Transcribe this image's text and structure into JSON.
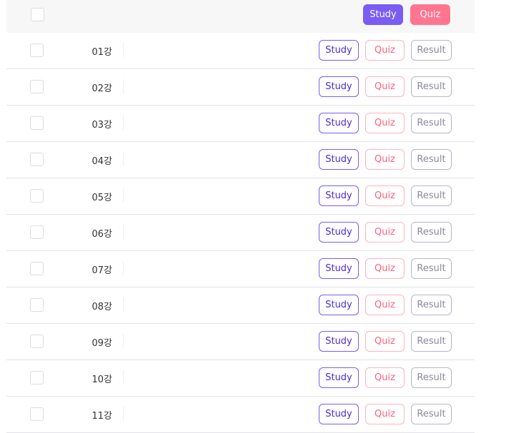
{
  "header": {
    "study_label": "Study",
    "quiz_label": "Quiz"
  },
  "buttons": {
    "study": "Study",
    "quiz": "Quiz",
    "result": "Result"
  },
  "colors": {
    "study": "#7a5cf5",
    "quiz": "#ff7590",
    "result": "#b7b7c8"
  },
  "rows": [
    {
      "label": "01강"
    },
    {
      "label": "02강"
    },
    {
      "label": "03강"
    },
    {
      "label": "04강"
    },
    {
      "label": "05강"
    },
    {
      "label": "06강"
    },
    {
      "label": "07강"
    },
    {
      "label": "08강"
    },
    {
      "label": "09강"
    },
    {
      "label": "10강"
    },
    {
      "label": "11강"
    }
  ]
}
